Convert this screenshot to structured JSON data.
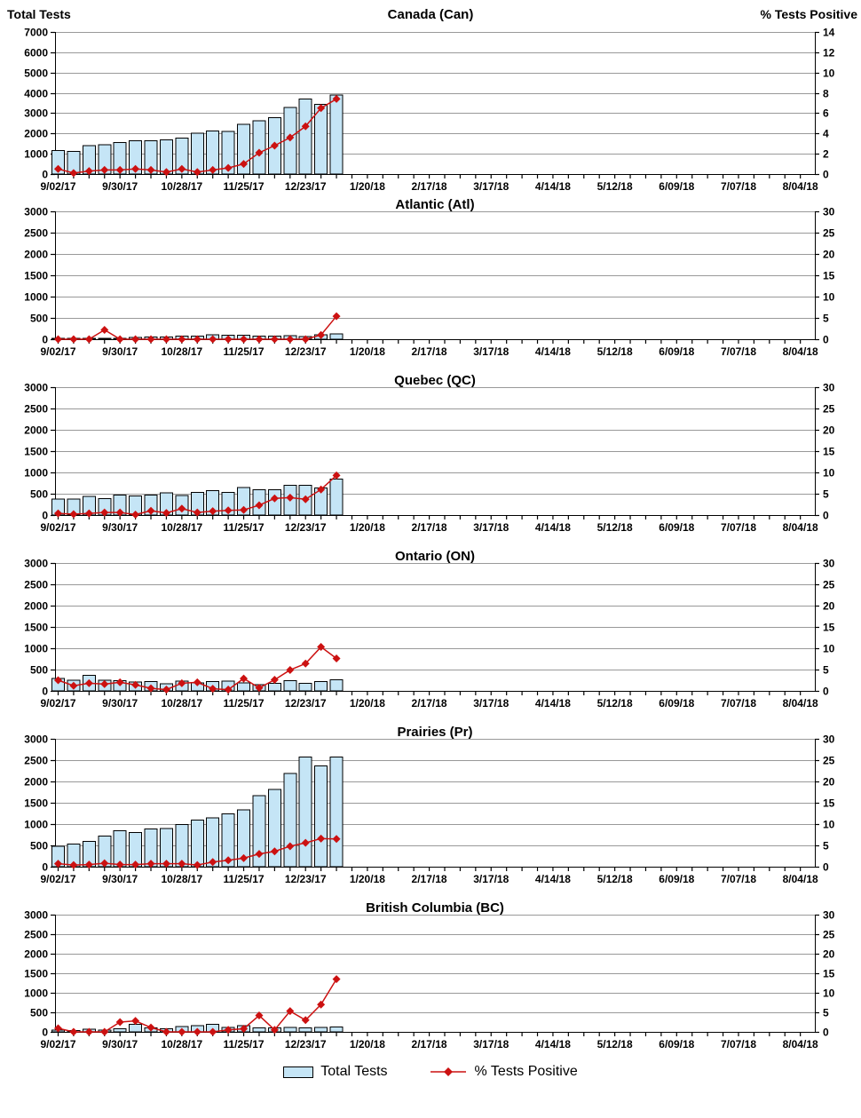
{
  "header": {
    "left_axis_title": "Total Tests",
    "right_axis_title": "% Tests Positive"
  },
  "legend": {
    "bar_label": "Total Tests",
    "line_label": "% Tests Positive"
  },
  "colors": {
    "bar_fill": "#C5E5F6",
    "bar_border": "#000000",
    "line": "#CC1111",
    "grid": "#999999",
    "axis": "#000000"
  },
  "x_axis": {
    "tick_labels": [
      "9/02/17",
      "9/30/17",
      "10/28/17",
      "11/25/17",
      "12/23/17",
      "1/20/18",
      "2/17/18",
      "3/17/18",
      "4/14/18",
      "5/12/18",
      "6/09/18",
      "7/07/18",
      "8/04/18"
    ],
    "label_interval_weeks": 4,
    "weekly_ticks": 49
  },
  "chart_data": [
    {
      "id": "canada",
      "type": "bar+line",
      "title": "Canada (Can)",
      "left_axis_label": "Total Tests",
      "right_axis_label": "% Tests Positive",
      "left_max": 7000,
      "left_step": 1000,
      "right_max": 14,
      "right_step": 2,
      "bars": [
        1170,
        1120,
        1400,
        1440,
        1560,
        1640,
        1650,
        1690,
        1780,
        2010,
        2130,
        2090,
        2450,
        2620,
        2780,
        3280,
        3700,
        3430,
        3890
      ],
      "pct": [
        0.5,
        0.1,
        0.3,
        0.4,
        0.4,
        0.5,
        0.4,
        0.2,
        0.5,
        0.2,
        0.4,
        0.6,
        1.0,
        2.1,
        2.8,
        3.6,
        4.7,
        6.5,
        7.4
      ]
    },
    {
      "id": "atlantic",
      "type": "bar+line",
      "title": "Atlantic (Atl)",
      "left_max": 3000,
      "left_step": 500,
      "right_max": 30,
      "right_step": 5,
      "bars": [
        10,
        10,
        15,
        20,
        20,
        40,
        55,
        55,
        70,
        75,
        100,
        90,
        95,
        70,
        70,
        80,
        60,
        105,
        125
      ],
      "pct": [
        0,
        0,
        0,
        2.2,
        0,
        0,
        0,
        0,
        0,
        0,
        0,
        0,
        0,
        0,
        0,
        0,
        0,
        1.0,
        5.4
      ]
    },
    {
      "id": "quebec",
      "type": "bar+line",
      "title": "Quebec (QC)",
      "left_max": 3000,
      "left_step": 500,
      "right_max": 30,
      "right_step": 5,
      "bars": [
        370,
        370,
        440,
        390,
        470,
        450,
        470,
        520,
        460,
        530,
        570,
        530,
        650,
        590,
        590,
        700,
        700,
        640,
        840
      ],
      "pct": [
        0.4,
        0.2,
        0.4,
        0.6,
        0.6,
        0.1,
        1.0,
        0.5,
        1.5,
        0.6,
        0.9,
        1.1,
        1.2,
        2.3,
        3.9,
        4.1,
        3.7,
        6.0,
        9.3
      ]
    },
    {
      "id": "ontario",
      "type": "bar+line",
      "title": "Ontario (ON)",
      "left_max": 3000,
      "left_step": 500,
      "right_max": 30,
      "right_step": 5,
      "bars": [
        290,
        250,
        360,
        250,
        240,
        210,
        220,
        170,
        230,
        190,
        220,
        230,
        190,
        150,
        180,
        240,
        180,
        220,
        260
      ],
      "pct": [
        2.5,
        1.2,
        1.8,
        1.6,
        2.0,
        1.4,
        0.6,
        0.3,
        1.8,
        2.0,
        0.5,
        0.3,
        2.9,
        0.7,
        2.6,
        4.9,
        6.4,
        10.3,
        7.6
      ]
    },
    {
      "id": "prairies",
      "type": "bar+line",
      "title": "Prairies (Pr)",
      "left_max": 3000,
      "left_step": 500,
      "right_max": 30,
      "right_step": 5,
      "bars": [
        480,
        530,
        590,
        720,
        840,
        800,
        890,
        900,
        990,
        1090,
        1150,
        1240,
        1330,
        1670,
        1810,
        2190,
        2570,
        2360,
        2570
      ],
      "pct": [
        0.7,
        0.4,
        0.5,
        0.8,
        0.5,
        0.5,
        0.7,
        0.7,
        0.7,
        0.4,
        1.1,
        1.5,
        2.0,
        3.0,
        3.6,
        4.8,
        5.6,
        6.6,
        6.5
      ]
    },
    {
      "id": "british-columbia",
      "type": "bar+line",
      "title": "British Columbia (BC)",
      "left_max": 3000,
      "left_step": 500,
      "right_max": 30,
      "right_step": 5,
      "bars": [
        45,
        30,
        70,
        45,
        75,
        190,
        100,
        75,
        140,
        160,
        190,
        110,
        160,
        100,
        100,
        115,
        100,
        115,
        125
      ],
      "pct": [
        0.9,
        0,
        0,
        0,
        2.5,
        2.8,
        1.1,
        0,
        0,
        0,
        0,
        0.5,
        0.8,
        4.2,
        0.5,
        5.3,
        3.0,
        7.0,
        13.5
      ]
    }
  ]
}
